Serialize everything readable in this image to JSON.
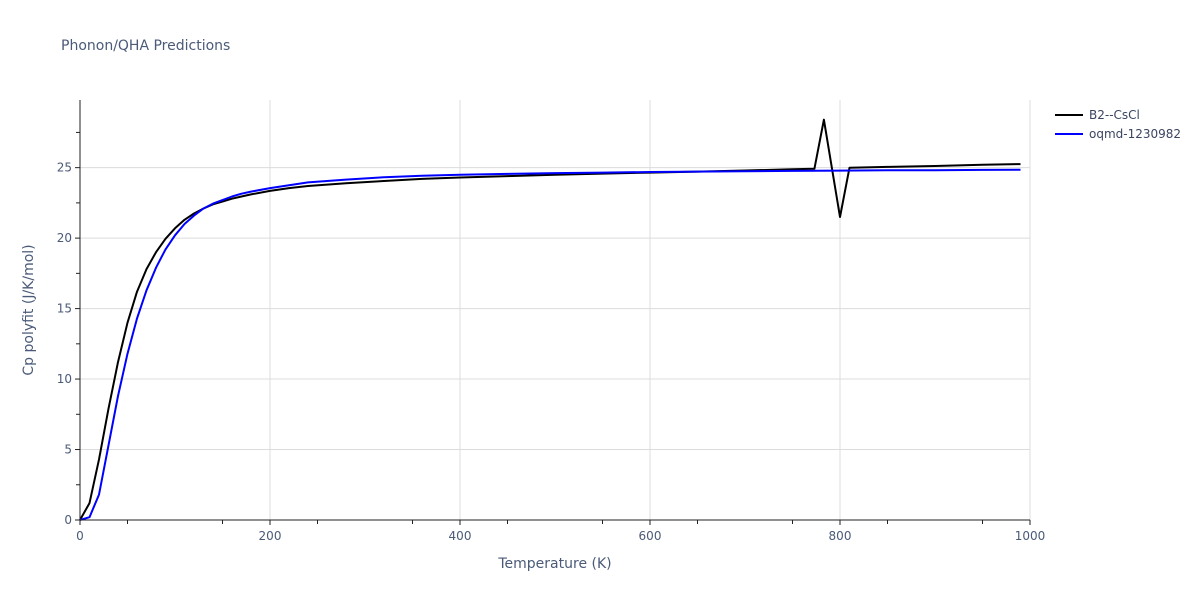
{
  "chart_data": {
    "type": "line",
    "title": "Phonon/QHA Predictions",
    "xlabel": "Temperature (K)",
    "ylabel": "Cp polyfit (J/K/mol)",
    "xlim": [
      0,
      1000
    ],
    "ylim": [
      0,
      29.8
    ],
    "x_ticks": [
      0,
      200,
      400,
      600,
      800,
      1000
    ],
    "y_ticks": [
      0,
      5,
      10,
      15,
      20,
      25
    ],
    "grid": true,
    "legend_position": "top-right",
    "series": [
      {
        "name": "B2--CsCl",
        "color": "#000000",
        "x": [
          0,
          10,
          20,
          30,
          40,
          50,
          60,
          70,
          80,
          90,
          100,
          110,
          120,
          130,
          140,
          150,
          160,
          170,
          180,
          200,
          220,
          240,
          280,
          320,
          360,
          400,
          450,
          500,
          550,
          600,
          650,
          700,
          750,
          773,
          783,
          800,
          810,
          850,
          900,
          950,
          990
        ],
        "y": [
          0,
          1.2,
          4.3,
          7.9,
          11.2,
          14.0,
          16.2,
          17.8,
          19.0,
          19.95,
          20.7,
          21.3,
          21.75,
          22.1,
          22.4,
          22.6,
          22.8,
          22.95,
          23.1,
          23.35,
          23.55,
          23.7,
          23.9,
          24.05,
          24.2,
          24.3,
          24.4,
          24.5,
          24.58,
          24.65,
          24.72,
          24.8,
          24.88,
          24.92,
          28.4,
          21.5,
          25.0,
          25.05,
          25.12,
          25.2,
          25.25
        ]
      },
      {
        "name": "oqmd-1230982",
        "color": "#0000ff",
        "x": [
          0,
          10,
          20,
          30,
          40,
          50,
          60,
          70,
          80,
          90,
          100,
          110,
          120,
          130,
          140,
          150,
          160,
          170,
          180,
          200,
          220,
          240,
          280,
          320,
          360,
          400,
          450,
          500,
          550,
          600,
          650,
          700,
          750,
          800,
          850,
          900,
          950,
          990
        ],
        "y": [
          0,
          0.2,
          1.8,
          5.3,
          8.8,
          11.8,
          14.3,
          16.3,
          17.9,
          19.2,
          20.2,
          21.0,
          21.6,
          22.1,
          22.45,
          22.7,
          22.95,
          23.15,
          23.3,
          23.55,
          23.75,
          23.95,
          24.15,
          24.32,
          24.42,
          24.5,
          24.56,
          24.61,
          24.65,
          24.69,
          24.72,
          24.75,
          24.77,
          24.79,
          24.81,
          24.82,
          24.84,
          24.85
        ]
      }
    ]
  }
}
